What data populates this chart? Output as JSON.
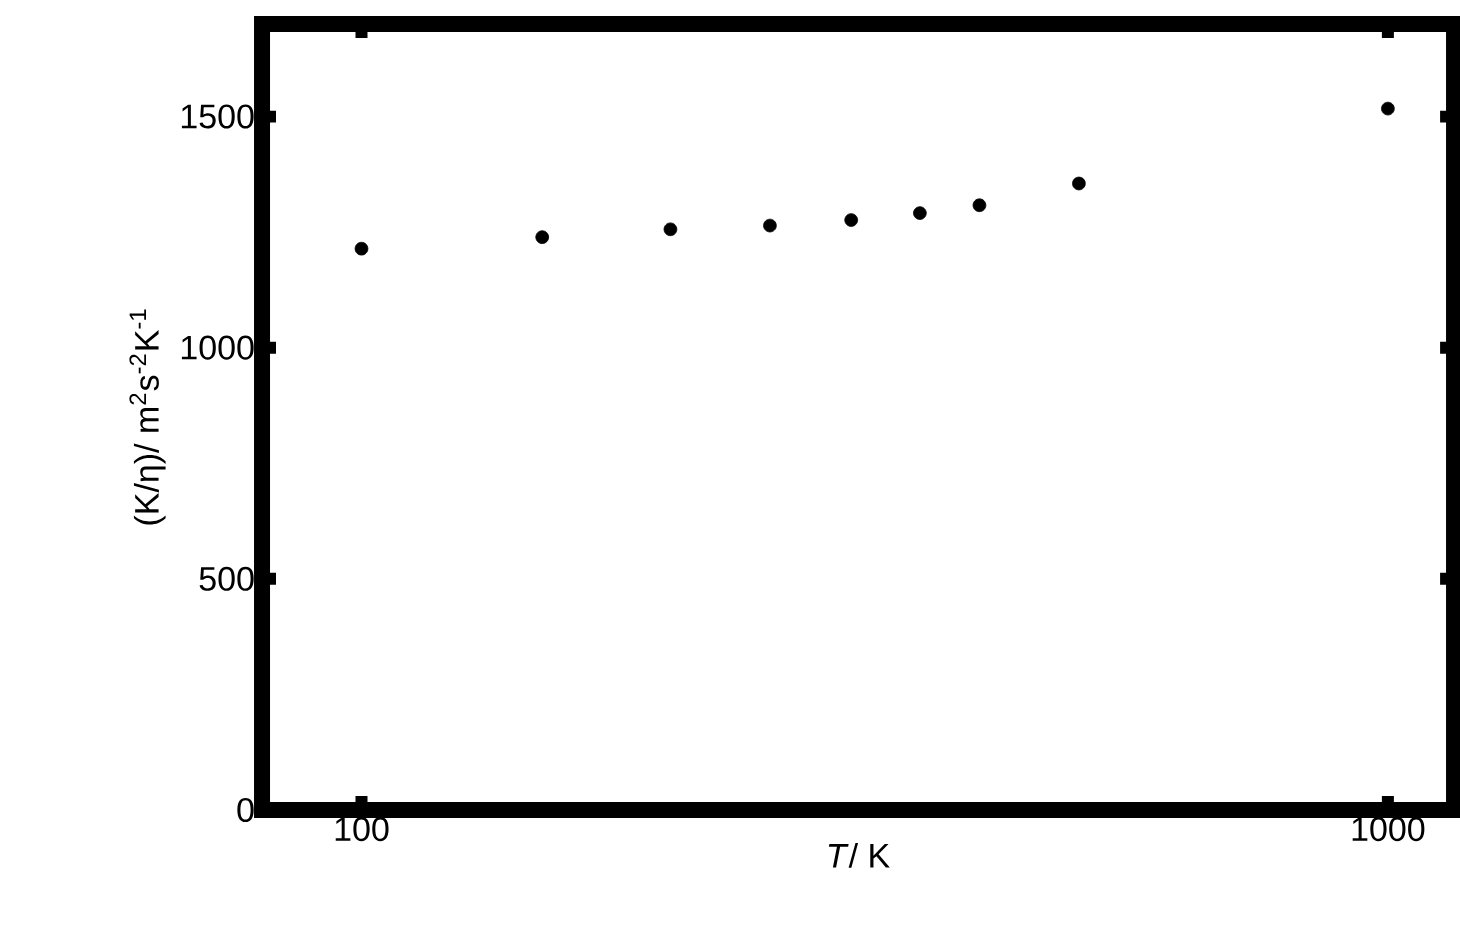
{
  "chart_data": {
    "type": "scatter",
    "xlabel": "*T*/ K",
    "ylabel": "(K/η)/ m$^{2}$s$^{-2}$K$^{-1}$",
    "x": [
      100,
      150,
      200,
      250,
      300,
      350,
      400,
      500,
      1000
    ],
    "values": [
      1214,
      1239,
      1256,
      1264,
      1276,
      1291,
      1308,
      1355,
      1517
    ],
    "color": "#000000",
    "marker": "circle",
    "log": "x",
    "xlim": [
      80,
      1160
    ],
    "ylim": [
      0,
      1700
    ],
    "xticks": [
      100,
      1000
    ],
    "yticks": [
      0,
      500,
      1000,
      1500
    ],
    "grid": false
  }
}
